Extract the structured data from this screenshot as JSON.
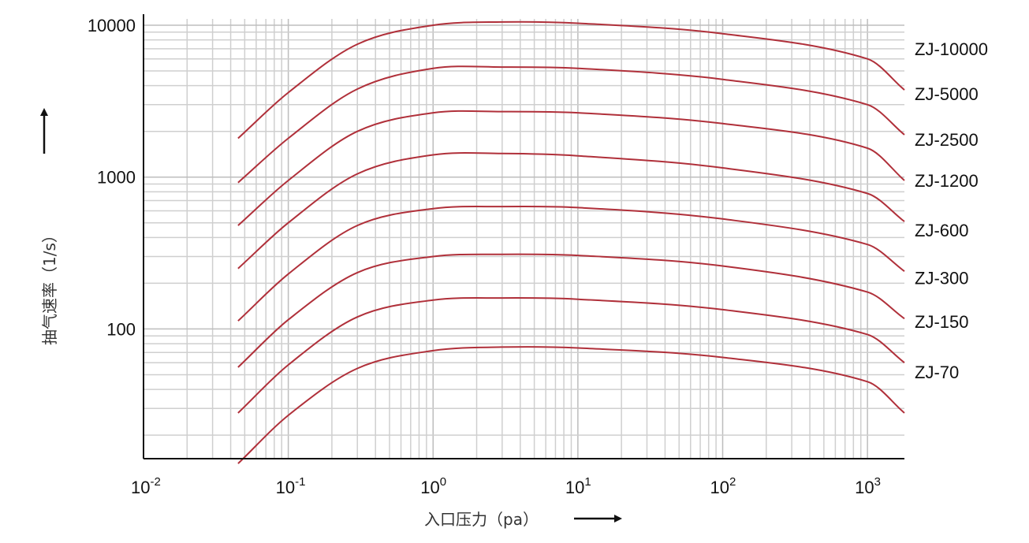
{
  "chart_data": {
    "type": "line",
    "title": "",
    "xlabel": "入口压力（pa）",
    "ylabel": "抽气速率（1/s）",
    "xscale": "log",
    "yscale": "log",
    "xlim": [
      0.01,
      1800
    ],
    "ylim": [
      14,
      11000
    ],
    "grid": true,
    "line_color": "#b0303a",
    "x_ticks": [
      {
        "value": 0.01,
        "base": "10",
        "exp": "-2"
      },
      {
        "value": 0.1,
        "base": "10",
        "exp": "-1"
      },
      {
        "value": 1,
        "base": "10",
        "exp": "0"
      },
      {
        "value": 10,
        "base": "10",
        "exp": "1"
      },
      {
        "value": 100,
        "base": "10",
        "exp": "2"
      },
      {
        "value": 1000,
        "base": "10",
        "exp": "3"
      }
    ],
    "y_ticks": [
      {
        "value": 10000,
        "label": "10000"
      },
      {
        "value": 1000,
        "label": "1000"
      },
      {
        "value": 100,
        "label": "100"
      }
    ],
    "x": [
      0.045,
      0.1,
      0.3,
      1,
      3,
      10,
      100,
      1000,
      1800
    ],
    "series": [
      {
        "name": "ZJ-10000",
        "values": [
          1800,
          3600,
          7500,
          10000,
          10500,
          10300,
          8800,
          6000,
          3750
        ]
      },
      {
        "name": "ZJ-5000",
        "values": [
          920,
          1800,
          3800,
          5200,
          5300,
          5200,
          4400,
          3000,
          1900
        ]
      },
      {
        "name": "ZJ-2500",
        "values": [
          480,
          950,
          2000,
          2650,
          2700,
          2650,
          2250,
          1550,
          950
        ]
      },
      {
        "name": "ZJ-1200",
        "values": [
          250,
          500,
          1050,
          1400,
          1430,
          1380,
          1150,
          780,
          510
        ]
      },
      {
        "name": "ZJ-600",
        "values": [
          113,
          230,
          480,
          620,
          640,
          630,
          530,
          360,
          240
        ]
      },
      {
        "name": "ZJ-300",
        "values": [
          56,
          115,
          235,
          300,
          310,
          305,
          260,
          175,
          117
        ]
      },
      {
        "name": "ZJ-150",
        "values": [
          28,
          58,
          120,
          155,
          160,
          157,
          134,
          92,
          60
        ]
      },
      {
        "name": "ZJ-70",
        "values": [
          13,
          27,
          55,
          72,
          76,
          75,
          65,
          45,
          28
        ]
      }
    ]
  }
}
